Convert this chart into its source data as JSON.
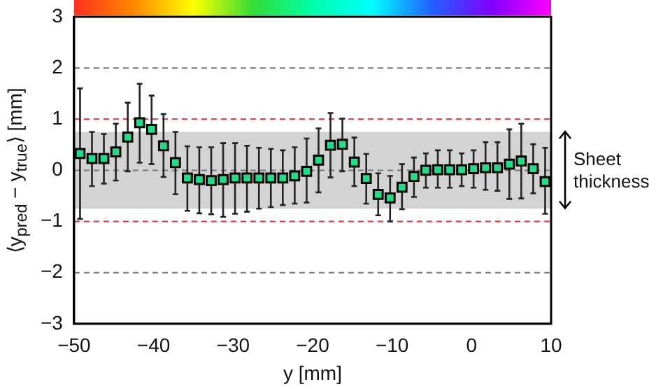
{
  "chart_data": {
    "type": "scatter",
    "xlabel": "y [mm]",
    "ylabel": "⟨y$_{pred}$ − y$_{true}$⟩ [mm]",
    "x": [
      -49.25,
      -47.75,
      -46.25,
      -44.75,
      -43.25,
      -41.75,
      -40.25,
      -38.75,
      -37.25,
      -35.75,
      -34.25,
      -32.75,
      -31.25,
      -29.75,
      -28.25,
      -26.75,
      -25.25,
      -23.75,
      -22.25,
      -20.75,
      -19.25,
      -17.75,
      -16.25,
      -14.75,
      -13.25,
      -11.75,
      -10.25,
      -8.75,
      -7.25,
      -5.75,
      -4.25,
      -2.75,
      -1.25,
      0.25,
      1.75,
      3.25,
      4.75,
      6.25,
      7.75,
      9.25
    ],
    "series": [
      {
        "color": "#22dd88",
        "values": [
          0.33,
          0.23,
          0.23,
          0.36,
          0.65,
          0.93,
          0.8,
          0.48,
          0.15,
          -0.15,
          -0.18,
          -0.2,
          -0.18,
          -0.15,
          -0.15,
          -0.15,
          -0.15,
          -0.15,
          -0.11,
          -0.02,
          0.2,
          0.49,
          0.51,
          0.16,
          -0.16,
          -0.47,
          -0.54,
          -0.33,
          -0.12,
          0,
          0.01,
          0.01,
          0.01,
          0.03,
          0.05,
          0.05,
          0.12,
          0.18,
          0.03,
          -0.22
        ],
        "errors": [
          [
            -0.95,
            1.6
          ],
          [
            -0.31,
            0.75
          ],
          [
            -0.26,
            0.71
          ],
          [
            -0.2,
            0.91
          ],
          [
            -0.02,
            1.32
          ],
          [
            0.15,
            1.69
          ],
          [
            0.12,
            1.46
          ],
          [
            -0.13,
            1.1
          ],
          [
            -0.47,
            0.75
          ],
          [
            -0.79,
            0.47
          ],
          [
            -0.84,
            0.45
          ],
          [
            -0.86,
            0.45
          ],
          [
            -0.91,
            0.53
          ],
          [
            -0.85,
            0.53
          ],
          [
            -0.81,
            0.48
          ],
          [
            -0.75,
            0.44
          ],
          [
            -0.72,
            0.42
          ],
          [
            -0.68,
            0.39
          ],
          [
            -0.65,
            0.45
          ],
          [
            -0.63,
            0.62
          ],
          [
            -0.43,
            0.82
          ],
          [
            -0.14,
            1.12
          ],
          [
            -0.02,
            1.01
          ],
          [
            -0.31,
            0.64
          ],
          [
            -0.65,
            0.32
          ],
          [
            -0.88,
            -0.06
          ],
          [
            -1.0,
            -0.11
          ],
          [
            -0.76,
            0.12
          ],
          [
            -0.52,
            0.25
          ],
          [
            -0.34,
            0.33
          ],
          [
            -0.34,
            0.39
          ],
          [
            -0.34,
            0.39
          ],
          [
            -0.31,
            0.33
          ],
          [
            -0.34,
            0.39
          ],
          [
            -0.38,
            0.55
          ],
          [
            -0.4,
            0.55
          ],
          [
            -0.56,
            0.8
          ],
          [
            -0.55,
            0.91
          ],
          [
            -0.45,
            0.51
          ],
          [
            -0.85,
            0.44
          ]
        ]
      }
    ],
    "xlim": [
      -50,
      10
    ],
    "xticks": [
      -50,
      -40,
      -30,
      -20,
      -10,
      0,
      10
    ],
    "ylim": [
      -3,
      3
    ],
    "yticks": [
      -3,
      -2,
      -1,
      0,
      1,
      2,
      3
    ],
    "marker": "square",
    "grid": false,
    "legend": false,
    "bands": [
      {
        "axis": "y",
        "from": -0.75,
        "to": 0.75,
        "label": "Sheet thickness",
        "color": "#d3d3d3"
      }
    ],
    "ref_lines": [
      {
        "axis": "y",
        "value": 2,
        "color": "#777777",
        "line_style": "dashed"
      },
      {
        "axis": "y",
        "value": 1,
        "color": "#e03030",
        "line_style": "dashed"
      },
      {
        "axis": "y",
        "value": 0,
        "color": "#777777",
        "line_style": "dashed"
      },
      {
        "axis": "y",
        "value": -1,
        "color": "#e03030",
        "line_style": "dashed"
      },
      {
        "axis": "y",
        "value": -2,
        "color": "#777777",
        "line_style": "dashed"
      }
    ]
  }
}
